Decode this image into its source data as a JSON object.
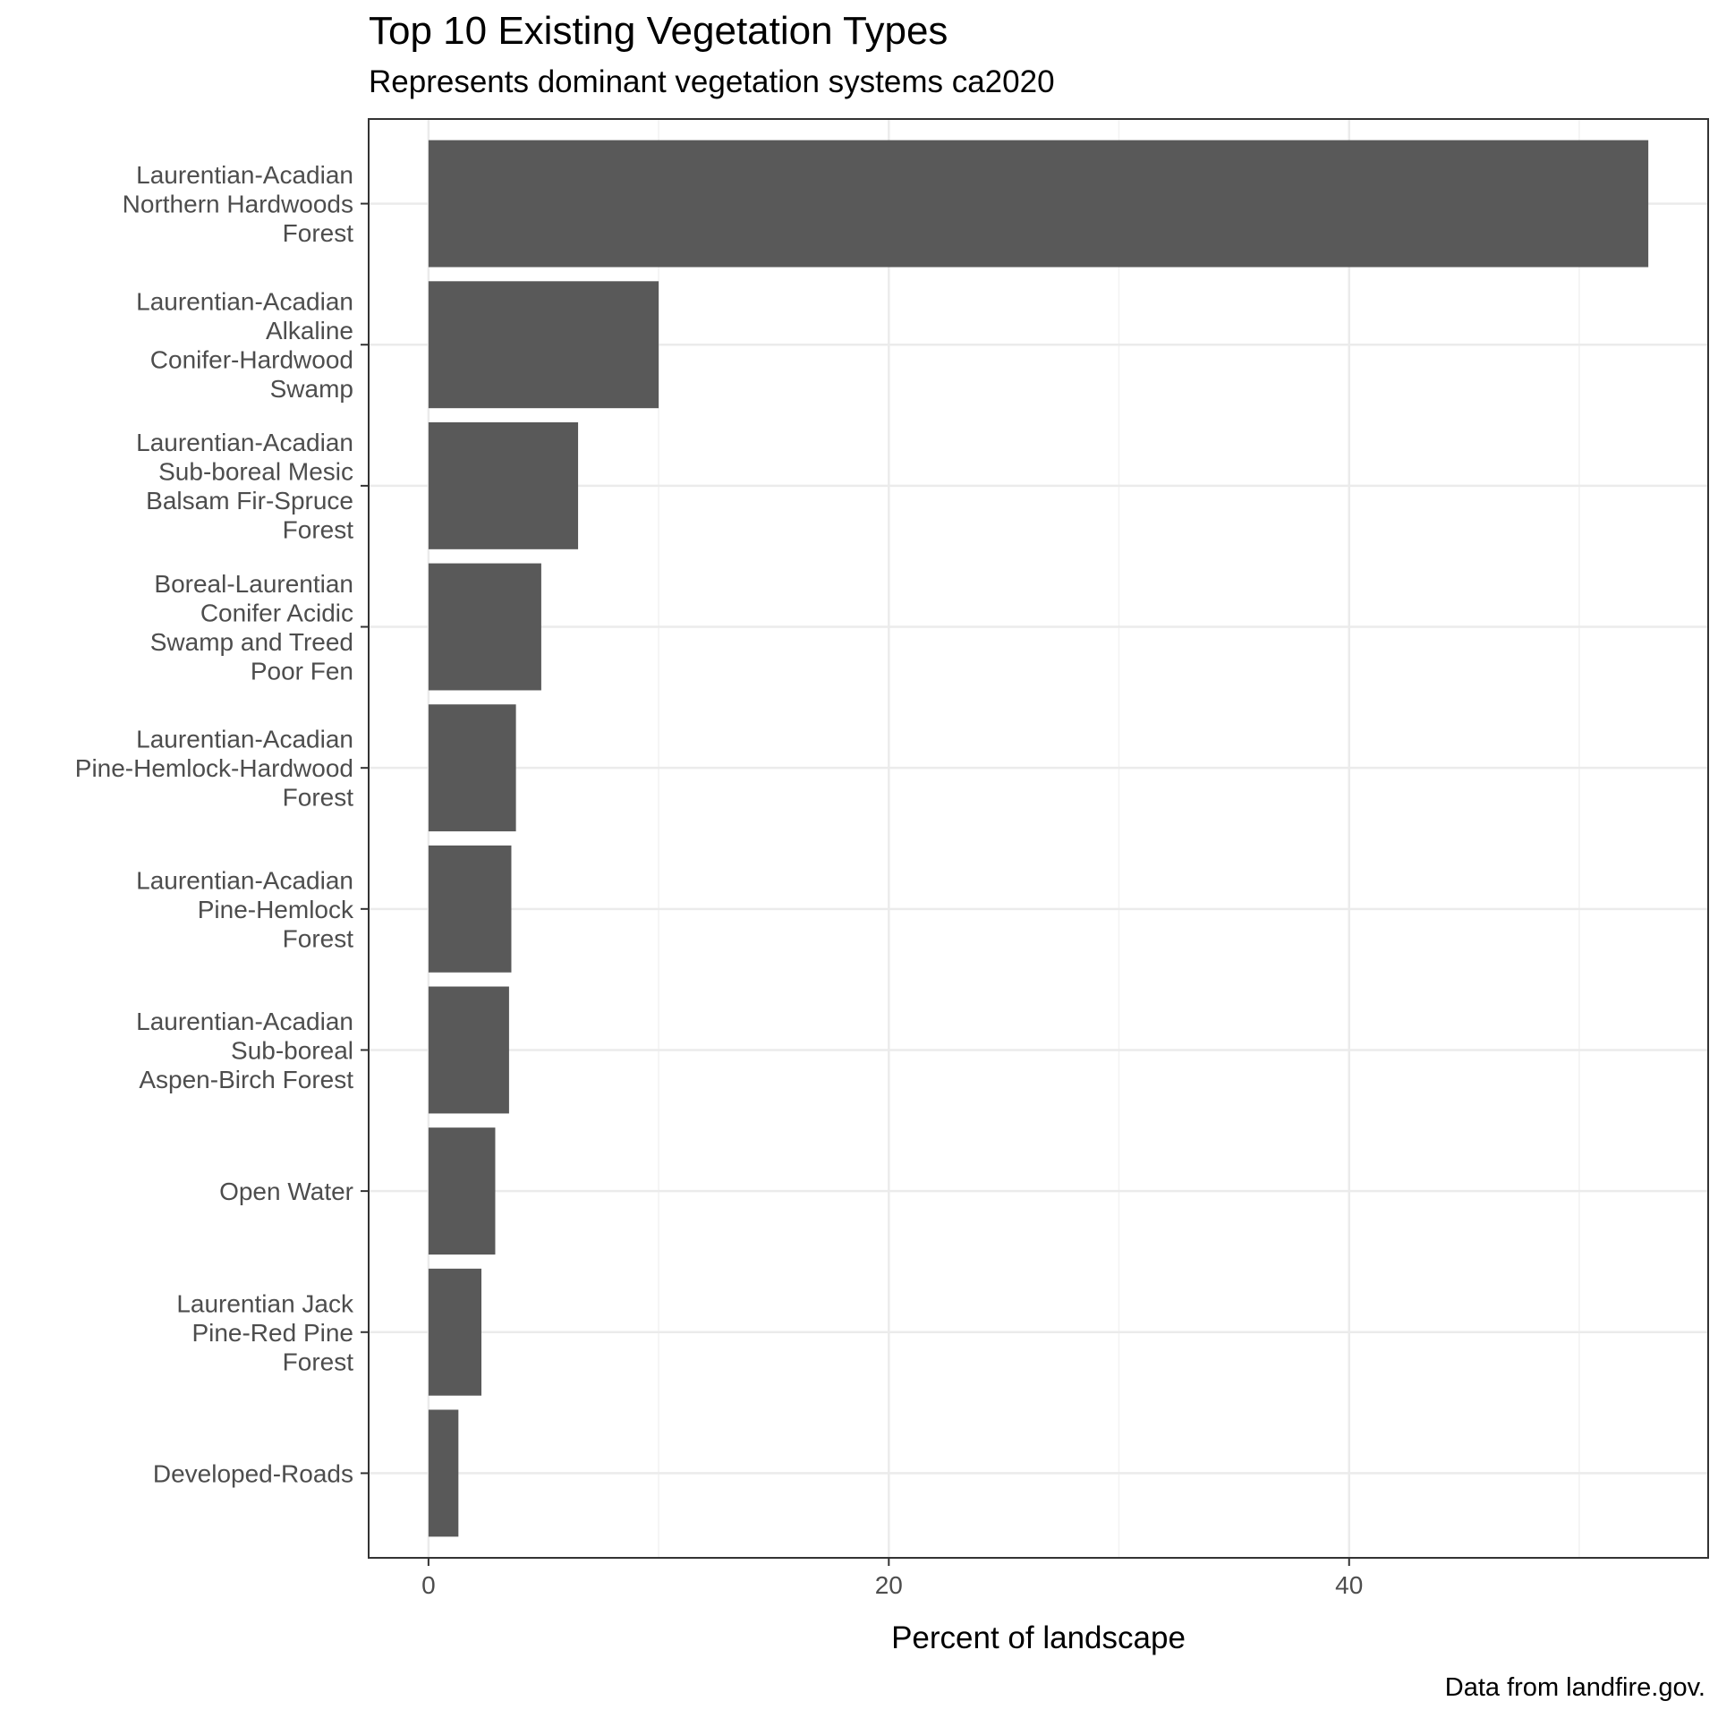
{
  "chart_data": {
    "type": "bar",
    "orientation": "horizontal",
    "title": "Top 10 Existing Vegetation Types",
    "subtitle": "Represents dominant vegetation systems ca2020",
    "caption": "Data from landfire.gov.",
    "xlabel": "Percent of landscape",
    "ylabel": "",
    "xlim": [
      -2.6,
      55.6
    ],
    "xticks": [
      0,
      20,
      40
    ],
    "grid": true,
    "categories": [
      [
        "Laurentian-Acadian",
        "Northern Hardwoods",
        "Forest"
      ],
      [
        "Laurentian-Acadian",
        "Alkaline",
        "Conifer-Hardwood",
        "Swamp"
      ],
      [
        "Laurentian-Acadian",
        "Sub-boreal Mesic",
        "Balsam Fir-Spruce",
        "Forest"
      ],
      [
        "Boreal-Laurentian",
        "Conifer Acidic",
        "Swamp and Treed",
        "Poor Fen"
      ],
      [
        "Laurentian-Acadian",
        "Pine-Hemlock-Hardwood",
        "Forest"
      ],
      [
        "Laurentian-Acadian",
        "Pine-Hemlock",
        "Forest"
      ],
      [
        "Laurentian-Acadian",
        "Sub-boreal",
        "Aspen-Birch Forest"
      ],
      [
        "Open Water"
      ],
      [
        "Laurentian Jack",
        "Pine-Red Pine",
        "Forest"
      ],
      [
        "Developed-Roads"
      ]
    ],
    "values": [
      53.0,
      10.0,
      6.5,
      4.9,
      3.8,
      3.6,
      3.5,
      2.9,
      2.3,
      1.3
    ],
    "bar_color": "#595959"
  }
}
